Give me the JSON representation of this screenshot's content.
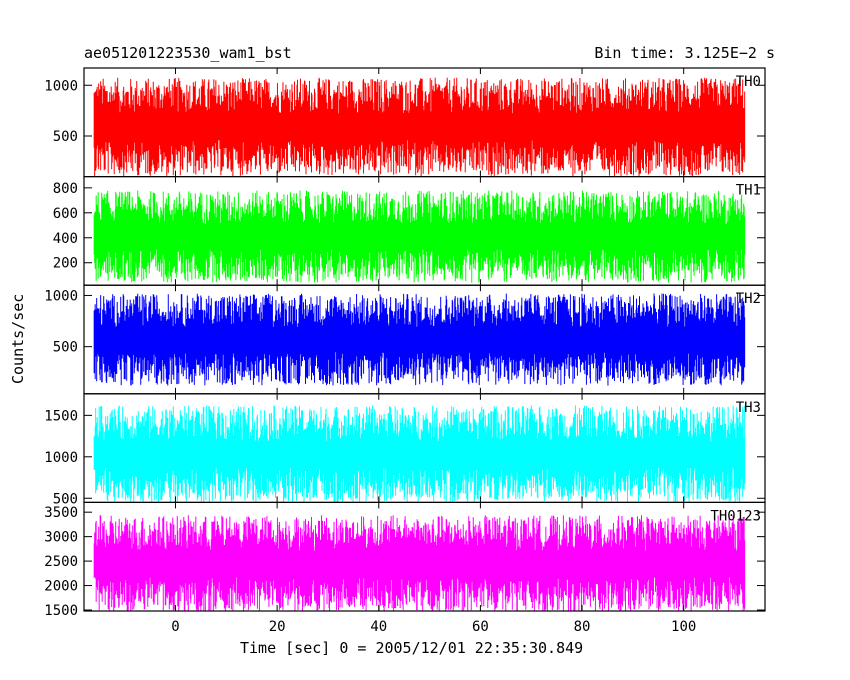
{
  "header": {
    "title_left": "ae051201223530_wam1_bst",
    "title_right": "Bin time: 3.125E−2 s"
  },
  "chart_data": {
    "type": "line",
    "title": "ae051201223530_wam1_bst",
    "subtitle": "Bin time: 3.125E−2 s",
    "xlabel": "Time [sec] 0 = 2005/12/01 22:35:30.849",
    "ylabel": "Counts/sec",
    "xlim": [
      -18,
      116
    ],
    "x_range_data": [
      -16,
      112
    ],
    "x_ticks": [
      0,
      20,
      40,
      60,
      80,
      100
    ],
    "grid": false,
    "panels": [
      {
        "name": "TH0",
        "color": "#ff0000",
        "ylim": [
          100,
          1170
        ],
        "y_ticks": [
          500,
          1000
        ],
        "mean": 590,
        "min": 90,
        "max": 1170
      },
      {
        "name": "TH1",
        "color": "#00ff00",
        "ylim": [
          20,
          890
        ],
        "y_ticks": [
          200,
          400,
          600,
          800
        ],
        "mean": 410,
        "min": 70,
        "max": 890
      },
      {
        "name": "TH2",
        "color": "#0000ff",
        "ylim": [
          40,
          1100
        ],
        "y_ticks": [
          500,
          1000
        ],
        "mean": 570,
        "min": 100,
        "max": 1100
      },
      {
        "name": "TH3",
        "color": "#00ffff",
        "ylim": [
          450,
          1760
        ],
        "y_ticks": [
          500,
          1000,
          1500
        ],
        "mean": 1030,
        "min": 450,
        "max": 1760
      },
      {
        "name": "TH0123",
        "color": "#ff00ff",
        "ylim": [
          1480,
          3700
        ],
        "y_ticks": [
          1500,
          2000,
          2500,
          3000,
          3500
        ],
        "mean": 2440,
        "min": 1480,
        "max": 3700
      }
    ]
  }
}
